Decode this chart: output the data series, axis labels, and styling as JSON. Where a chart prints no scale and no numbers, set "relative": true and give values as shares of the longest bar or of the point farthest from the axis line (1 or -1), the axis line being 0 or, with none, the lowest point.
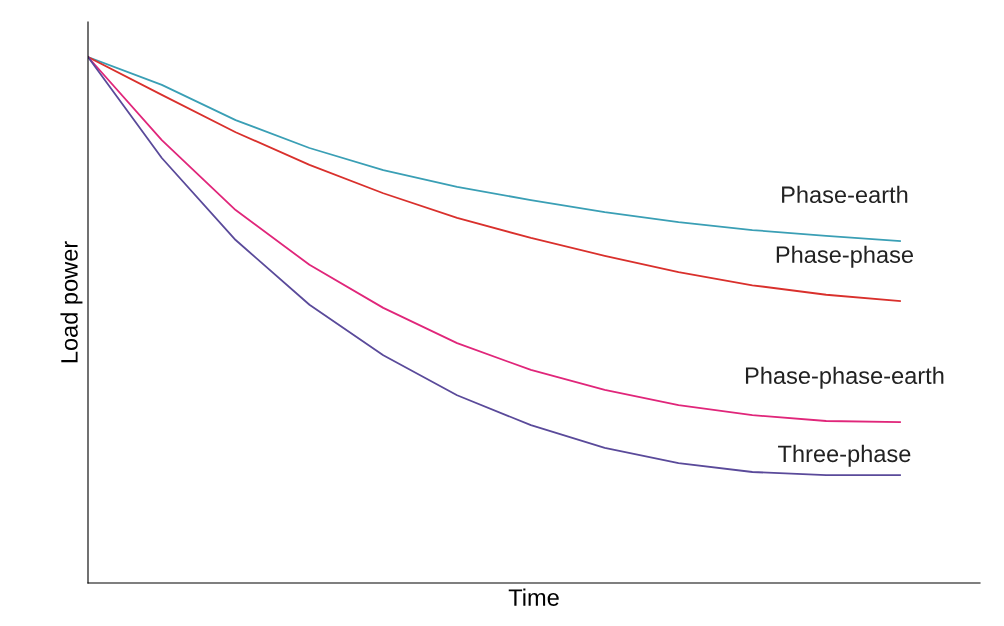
{
  "chart_data": {
    "type": "line",
    "relative": true,
    "xlabel": "Time",
    "ylabel": "Load power",
    "categories": [
      null,
      null,
      null,
      null,
      null,
      null,
      null,
      null,
      null,
      null,
      null,
      null
    ],
    "legend": false,
    "tick_labels": false,
    "marker": "none",
    "line_style": "solid",
    "series": [
      {
        "name": "Phase-earth",
        "color": "#3a9fb5",
        "values": [
          1,
          0.947,
          0.88,
          0.827,
          0.785,
          0.753,
          0.728,
          0.705,
          0.686,
          0.671,
          0.66,
          0.65
        ]
      },
      {
        "name": "Phase-phase",
        "color": "#d9302c",
        "values": [
          1,
          0.928,
          0.857,
          0.795,
          0.741,
          0.694,
          0.656,
          0.622,
          0.591,
          0.566,
          0.548,
          0.536
        ]
      },
      {
        "name": "Phase-phase-earth",
        "color": "#e0267a",
        "values": [
          1,
          0.842,
          0.709,
          0.605,
          0.523,
          0.456,
          0.405,
          0.367,
          0.338,
          0.319,
          0.308,
          0.306
        ]
      },
      {
        "name": "Three-phase",
        "color": "#5a4a9a",
        "values": [
          1,
          0.808,
          0.652,
          0.529,
          0.433,
          0.357,
          0.3,
          0.257,
          0.228,
          0.211,
          0.205,
          0.205
        ]
      }
    ]
  }
}
